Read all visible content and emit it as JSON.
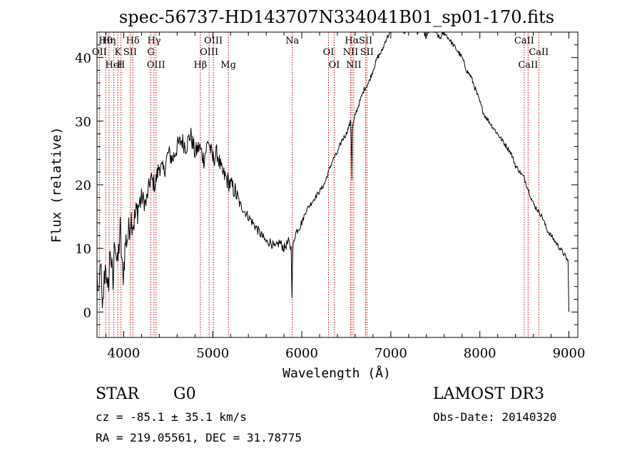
{
  "chart_data": {
    "type": "line",
    "title": "spec-56737-HD143707N334041B01_sp01-170.fits",
    "xlabel": "Wavelength (Å)",
    "ylabel": "Flux (relative)",
    "xlim": [
      3700,
      9100
    ],
    "ylim": [
      -4,
      44
    ],
    "xticks": [
      4000,
      5000,
      6000,
      7000,
      8000,
      9000
    ],
    "yticks": [
      0,
      10,
      20,
      30,
      40
    ],
    "grid": false,
    "series": [
      {
        "name": "flux",
        "x": [
          3700,
          3720,
          3740,
          3760,
          3780,
          3800,
          3820,
          3850,
          3880,
          3900,
          3930,
          3960,
          3990,
          4020,
          4050,
          4080,
          4110,
          4150,
          4200,
          4250,
          4300,
          4350,
          4400,
          4450,
          4500,
          4550,
          4600,
          4650,
          4700,
          4750,
          4800,
          4850,
          4900,
          4950,
          5000,
          5050,
          5100,
          5150,
          5200,
          5250,
          5300,
          5350,
          5400,
          5450,
          5500,
          5550,
          5600,
          5650,
          5700,
          5750,
          5800,
          5850,
          5880,
          5890,
          5900,
          5910,
          5920,
          5950,
          6000,
          6050,
          6100,
          6150,
          6200,
          6250,
          6300,
          6350,
          6400,
          6450,
          6500,
          6550,
          6560,
          6563,
          6570,
          6600,
          6650,
          6700,
          6750,
          6800,
          6850,
          6900,
          6950,
          7000,
          7050,
          7100,
          7150,
          7200,
          7250,
          7300,
          7350,
          7400,
          7450,
          7500,
          7550,
          7600,
          7650,
          7700,
          7750,
          7800,
          7850,
          7900,
          7950,
          8000,
          8050,
          8100,
          8150,
          8200,
          8250,
          8300,
          8350,
          8400,
          8450,
          8500,
          8550,
          8600,
          8650,
          8700,
          8750,
          8800,
          8850,
          8900,
          8950,
          8990,
          9000
        ],
        "values": [
          6,
          1,
          9,
          -1,
          5,
          8,
          2,
          10,
          4,
          12,
          7,
          13,
          5,
          11,
          12,
          15,
          14,
          16,
          18,
          17,
          21,
          20,
          23,
          22,
          25,
          24,
          26,
          27,
          26,
          28,
          25,
          26,
          24,
          27,
          24,
          25,
          22,
          21,
          20,
          19,
          17,
          16,
          15,
          14,
          13,
          12,
          11,
          11,
          10,
          11,
          10,
          11,
          10,
          3,
          10,
          11,
          12,
          13,
          14,
          16,
          17,
          18,
          19,
          20,
          22,
          24,
          25,
          27,
          28,
          30,
          24,
          21,
          29,
          31,
          33,
          35,
          36,
          38,
          40,
          41,
          43,
          44,
          45,
          46,
          44,
          45,
          46,
          44,
          45,
          43,
          45,
          44,
          43,
          44,
          43,
          42,
          41,
          40,
          38,
          37,
          35,
          33,
          31,
          30,
          29,
          28,
          27,
          26,
          25,
          23,
          22,
          21,
          19,
          17,
          16,
          15,
          13,
          12,
          11,
          10,
          9,
          8,
          0
        ]
      }
    ],
    "lines": [
      {
        "name": "Hθ",
        "wavelength": 3798
      },
      {
        "name": "OII",
        "wavelength": 3727
      },
      {
        "name": "HeI",
        "wavelength": 3889
      },
      {
        "name": "Hη",
        "wavelength": 3835
      },
      {
        "name": "K",
        "wavelength": 3934
      },
      {
        "name": "H",
        "wavelength": 3969
      },
      {
        "name": "Hδ",
        "wavelength": 4102
      },
      {
        "name": "SII",
        "wavelength": 4072
      },
      {
        "name": "OIII",
        "wavelength": 4363
      },
      {
        "name": "Hγ",
        "wavelength": 4341
      },
      {
        "name": "G",
        "wavelength": 4305
      },
      {
        "name": "Hβ",
        "wavelength": 4861
      },
      {
        "name": "OIII",
        "wavelength": 5007
      },
      {
        "name": "OIII",
        "wavelength": 4959
      },
      {
        "name": "Mg",
        "wavelength": 5175
      },
      {
        "name": "Na",
        "wavelength": 5893
      },
      {
        "name": "OI",
        "wavelength": 6300
      },
      {
        "name": "OI",
        "wavelength": 6364
      },
      {
        "name": "Hα",
        "wavelength": 6563
      },
      {
        "name": "NII",
        "wavelength": 6548
      },
      {
        "name": "NII",
        "wavelength": 6584
      },
      {
        "name": "SII",
        "wavelength": 6717
      },
      {
        "name": "SII",
        "wavelength": 6731
      },
      {
        "name": "CaII",
        "wavelength": 8542
      },
      {
        "name": "CaII",
        "wavelength": 8498
      },
      {
        "name": "CaII",
        "wavelength": 8662
      }
    ]
  },
  "info": {
    "class": "STAR",
    "subclass": "G0",
    "survey": "LAMOST DR3",
    "cz": "cz = -85.1 ± 35.1 km/s",
    "obs_date": "Obs-Date: 20140320",
    "coords": "RA = 219.05561, DEC =  31.78775"
  }
}
